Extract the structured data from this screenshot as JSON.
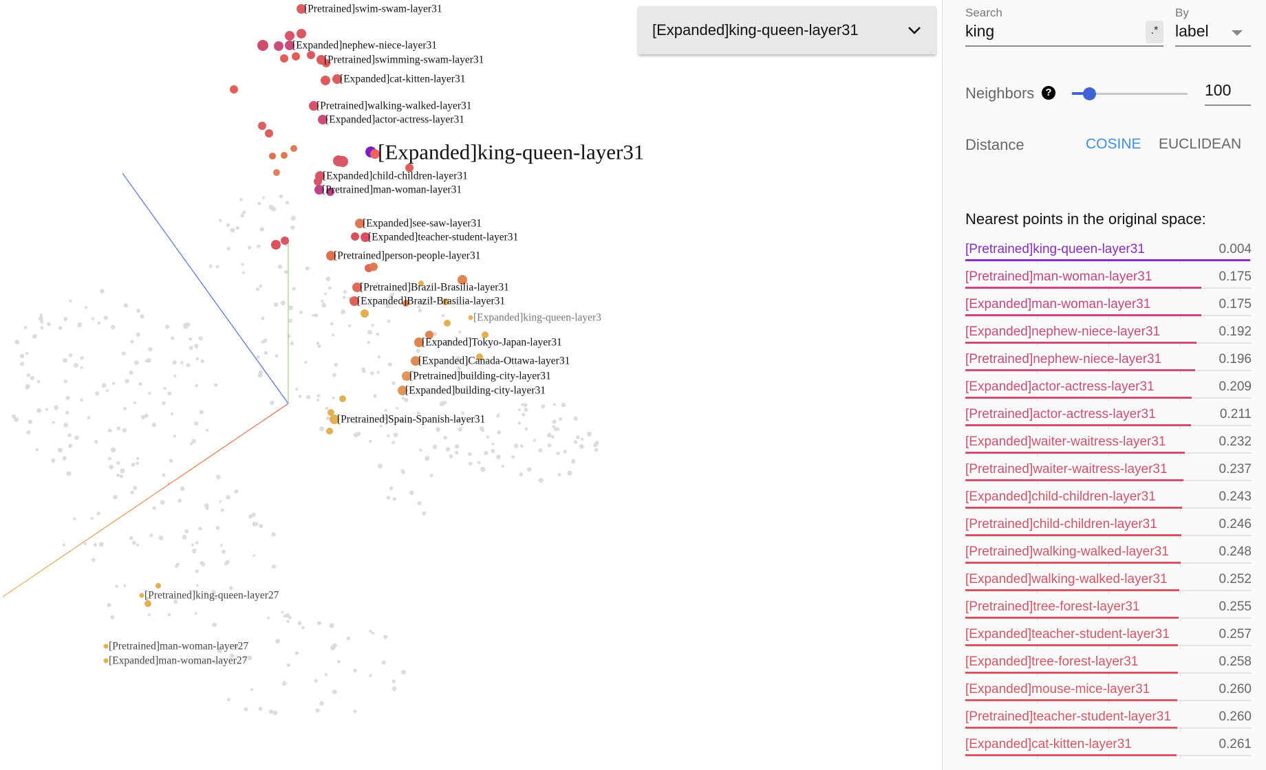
{
  "projector": {
    "selected_point": "[Expanded]king-queen-layer31",
    "point_labels": [
      {
        "text": "[Pretrained]swim-swam-layer31",
        "color": "#dc5f5f"
      },
      {
        "text": "[Expanded]nephew-niece-layer31",
        "color": "#c94d7a"
      },
      {
        "text": "[Pretrained]swimming-swam-layer31",
        "color": "#de5a5e"
      },
      {
        "text": "[Expanded]cat-kitten-layer31",
        "color": "#df5b62"
      },
      {
        "text": "[Pretrained]walking-walked-layer31",
        "color": "#d6546a"
      },
      {
        "text": "[Expanded]actor-actress-layer31",
        "color": "#cc4e78"
      },
      {
        "text": "[Expanded]king-queen-layer31",
        "color": "#7b1fc4",
        "big": true
      },
      {
        "text": "[Expanded]child-children-layer31",
        "color": "#d85666"
      },
      {
        "text": "[Pretrained]man-woman-layer31",
        "color": "#bf4484"
      },
      {
        "text": "[Expanded]see-saw-layer31",
        "color": "#e07a55"
      },
      {
        "text": "[Expanded]teacher-student-layer31",
        "color": "#d94f60"
      },
      {
        "text": "[Pretrained]person-people-layer31",
        "color": "#e0704f"
      },
      {
        "text": "[Pretrained]Brazil-Brasilia-layer31",
        "color": "#e06a55"
      },
      {
        "text": "[Expanded]Brazil-Brasilia-layer31",
        "color": "#e0605a"
      },
      {
        "text": "[Expanded]king-queen-layer3",
        "color": "#e2b45a",
        "dim": true
      },
      {
        "text": "[Expanded]Tokyo-Japan-layer31",
        "color": "#e2844f"
      },
      {
        "text": "[Expanded]Canada-Ottawa-layer31",
        "color": "#e08a55"
      },
      {
        "text": "[Pretrained]building-city-layer31",
        "color": "#e2955a"
      },
      {
        "text": "[Expanded]building-city-layer31",
        "color": "#e2955a"
      },
      {
        "text": "[Pretrained]Spain-Spanish-layer31",
        "color": "#e2b050"
      },
      {
        "text": "[Pretrained]king-queen-layer27",
        "color": "#e2b050",
        "mid": true
      },
      {
        "text": "[Pretrained]man-woman-layer27",
        "color": "#e2b050",
        "mid": true
      },
      {
        "text": "[Expanded]man-woman-layer27",
        "color": "#e2b050",
        "mid": true
      }
    ],
    "axis_colors": {
      "x": "#f06040",
      "y": "#9fd08a",
      "z": "#4d6ef0"
    }
  },
  "panel": {
    "search_label": "Search",
    "search_value": "king",
    "regex_label": ".*",
    "by_label": "By",
    "by_value": "label",
    "neighbors_label": "Neighbors",
    "neighbors_help": "?",
    "neighbors_value": "100",
    "neighbors_fraction": 0.1,
    "distance_label": "Distance",
    "distance_options": [
      "COSINE",
      "EUCLIDEAN"
    ],
    "distance_selected": "COSINE",
    "accent_color": "#3b8fe8",
    "nearest_title": "Nearest points in the original space:",
    "nearest": [
      {
        "label": "[Pretrained]king-queen-layer31",
        "value": "0.004",
        "color": "#8a2bc8"
      },
      {
        "label": "[Pretrained]man-woman-layer31",
        "value": "0.175",
        "color": "#c8467c"
      },
      {
        "label": "[Expanded]man-woman-layer31",
        "value": "0.175",
        "color": "#c8467c"
      },
      {
        "label": "[Expanded]nephew-niece-layer31",
        "value": "0.192",
        "color": "#cb4a76"
      },
      {
        "label": "[Pretrained]nephew-niece-layer31",
        "value": "0.196",
        "color": "#cc4b74"
      },
      {
        "label": "[Expanded]actor-actress-layer31",
        "value": "0.209",
        "color": "#cf4d70"
      },
      {
        "label": "[Pretrained]actor-actress-layer31",
        "value": "0.211",
        "color": "#cf4d70"
      },
      {
        "label": "[Expanded]waiter-waitress-layer31",
        "value": "0.232",
        "color": "#d2506b"
      },
      {
        "label": "[Pretrained]waiter-waitress-layer31",
        "value": "0.237",
        "color": "#d3516a"
      },
      {
        "label": "[Expanded]child-children-layer31",
        "value": "0.243",
        "color": "#d45268"
      },
      {
        "label": "[Pretrained]child-children-layer31",
        "value": "0.246",
        "color": "#d45268"
      },
      {
        "label": "[Pretrained]walking-walked-layer31",
        "value": "0.248",
        "color": "#d55367"
      },
      {
        "label": "[Expanded]walking-walked-layer31",
        "value": "0.252",
        "color": "#d55466"
      },
      {
        "label": "[Pretrained]tree-forest-layer31",
        "value": "0.255",
        "color": "#d65565"
      },
      {
        "label": "[Expanded]teacher-student-layer31",
        "value": "0.257",
        "color": "#d65565"
      },
      {
        "label": "[Expanded]tree-forest-layer31",
        "value": "0.258",
        "color": "#d65565"
      },
      {
        "label": "[Expanded]mouse-mice-layer31",
        "value": "0.260",
        "color": "#d75664"
      },
      {
        "label": "[Pretrained]teacher-student-layer31",
        "value": "0.260",
        "color": "#d75664"
      },
      {
        "label": "[Expanded]cat-kitten-layer31",
        "value": "0.261",
        "color": "#d75664"
      }
    ]
  }
}
